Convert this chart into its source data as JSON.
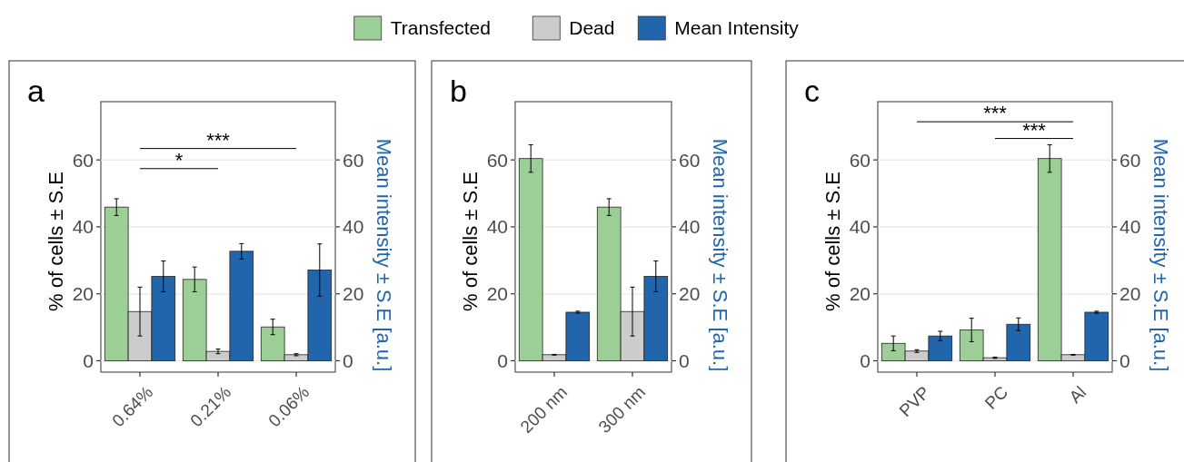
{
  "chart_data": [
    {
      "type": "bar",
      "title": "a",
      "ylabel": "% of cells ± S.E",
      "y2label": "Mean intensity ± S.E [a.u.]",
      "categories": [
        "0.64%",
        "0.21%",
        "0.06%"
      ],
      "ylim": [
        -3.4,
        77.4
      ],
      "yticks": [
        0,
        20,
        40,
        60
      ],
      "y2lim": [
        -3.4,
        77.4
      ],
      "y2ticks": [
        0,
        20,
        40,
        60
      ],
      "grid": "y",
      "legend": "top",
      "annotations": [
        "***",
        "*"
      ],
      "series": [
        {
          "name": "Transfected",
          "color": "#9ccf96",
          "values": [
            45.9,
            24.3,
            10.1
          ],
          "errors": [
            2.5,
            3.7,
            2.3
          ]
        },
        {
          "name": "Dead",
          "color": "#cccccc",
          "values": [
            14.7,
            2.8,
            1.8
          ],
          "errors": [
            7.3,
            0.7,
            0.3
          ]
        },
        {
          "name": "Mean Intensity",
          "color": "#2166ac",
          "axis": "y2",
          "values": [
            25.2,
            32.7,
            27.1
          ],
          "errors": [
            4.6,
            2.3,
            7.8
          ]
        }
      ]
    },
    {
      "type": "bar",
      "title": "b",
      "ylabel": "% of cells ± S.E",
      "y2label": "Mean intensity ± S.E [a.u.]",
      "categories": [
        "200 nm",
        "300 nm"
      ],
      "ylim": [
        -3.4,
        77.4
      ],
      "yticks": [
        0,
        20,
        40,
        60
      ],
      "y2lim": [
        -3.4,
        77.4
      ],
      "y2ticks": [
        0,
        20,
        40,
        60
      ],
      "grid": "y",
      "series": [
        {
          "color": "#9ccf96",
          "values": [
            60.4,
            45.9
          ],
          "errors": [
            4.1,
            2.5
          ]
        },
        {
          "color": "#cccccc",
          "values": [
            1.8,
            14.7
          ],
          "errors": [
            0.1,
            7.3
          ]
        },
        {
          "color": "#2166ac",
          "axis": "y2",
          "values": [
            14.5,
            25.2
          ],
          "errors": [
            0.3,
            4.6
          ]
        }
      ]
    },
    {
      "type": "bar",
      "title": "c",
      "ylabel": "% of cells ± S.E",
      "y2label": "Mean intensity ± S.E [a.u.]",
      "categories": [
        "PVP",
        "PC",
        "Al"
      ],
      "ylim": [
        -3.4,
        77.4
      ],
      "yticks": [
        0,
        20,
        40,
        60
      ],
      "y2lim": [
        -3.4,
        77.4
      ],
      "y2ticks": [
        0,
        20,
        40,
        60
      ],
      "grid": "y",
      "annotations": [
        "***",
        "***"
      ],
      "series": [
        {
          "color": "#9ccf96",
          "values": [
            5.2,
            9.2,
            60.4
          ],
          "errors": [
            2.2,
            3.5,
            4.1
          ]
        },
        {
          "color": "#cccccc",
          "values": [
            2.9,
            0.9,
            1.8
          ],
          "errors": [
            0.4,
            0.2,
            0.1
          ]
        },
        {
          "color": "#2166ac",
          "axis": "y2",
          "values": [
            7.4,
            10.9,
            14.5
          ],
          "errors": [
            1.4,
            1.9,
            0.3
          ]
        }
      ]
    }
  ]
}
